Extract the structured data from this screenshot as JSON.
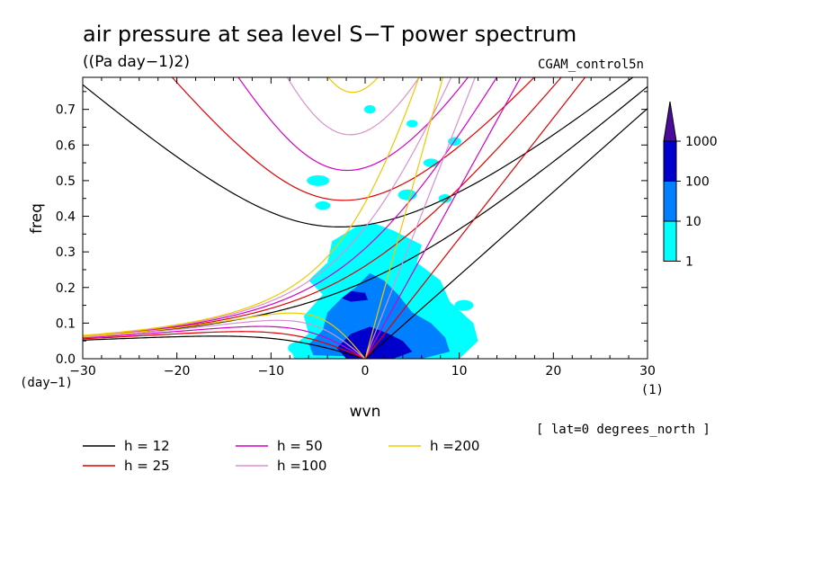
{
  "chart_data": {
    "type": "heatmap",
    "title": "air pressure at sea level S−T power spectrum",
    "units": "((Pa day−1)2)",
    "run_label": "CGAM_control5n",
    "xlabel": "wvn",
    "ylabel": "freq",
    "x_unit": "(1)",
    "y_unit": "(day−1)",
    "xlim": [
      -30,
      30
    ],
    "ylim": [
      0,
      0.79
    ],
    "x_ticks": [
      -30,
      -20,
      -10,
      0,
      10,
      20,
      30
    ],
    "x_tick_labels": [
      "−30",
      "−20",
      "−10",
      "0",
      "10",
      "20",
      "30"
    ],
    "y_ticks": [
      0.0,
      0.1,
      0.2,
      0.3,
      0.4,
      0.5,
      0.6,
      0.7
    ],
    "y_tick_labels": [
      "0.0",
      "0.1",
      "0.2",
      "0.3",
      "0.4",
      "0.5",
      "0.6",
      "0.7"
    ],
    "latitude_note": "[ lat=0 degrees_north ]",
    "colorbar": {
      "levels": [
        1,
        10,
        100,
        1000
      ],
      "level_labels": [
        "1",
        "10",
        "100",
        "1000"
      ],
      "colors": [
        "#00ffff",
        "#0080ff",
        "#0000cc",
        "#4b0c9c"
      ]
    },
    "dispersion_curves": [
      {
        "name": "h = 12",
        "h": 12,
        "color": "#000000"
      },
      {
        "name": "h = 25",
        "h": 25,
        "color": "#e00000"
      },
      {
        "name": "h = 50",
        "h": 50,
        "color": "#d400c8"
      },
      {
        "name": "h =100",
        "h": 100,
        "color": "#d890d0"
      },
      {
        "name": "h =200",
        "h": 200,
        "color": "#f0c800"
      }
    ],
    "power_patches": [
      {
        "x": [
          -5,
          8
        ],
        "y": [
          0.0,
          0.05
        ],
        "level": 2
      },
      {
        "x": [
          -4,
          6
        ],
        "y": [
          0.05,
          0.13
        ],
        "level": 1
      },
      {
        "x": [
          -2.5,
          0.5
        ],
        "y": [
          0.17,
          0.19
        ],
        "level": 2
      },
      {
        "x": [
          -1.5,
          0.5
        ],
        "y": [
          0.0,
          0.03
        ],
        "level": 3
      }
    ]
  }
}
